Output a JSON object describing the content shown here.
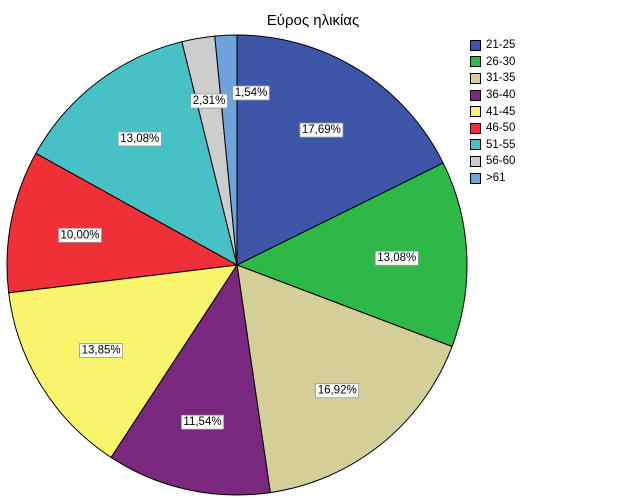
{
  "chart_data": {
    "type": "pie",
    "title": "Εύρος ηλικίας",
    "labels": [
      "21-25",
      "26-30",
      "31-35",
      "36-40",
      "41-45",
      "46-50",
      "51-55",
      "56-60",
      ">61"
    ],
    "values": [
      17.69,
      13.08,
      16.92,
      11.54,
      13.85,
      10.0,
      13.08,
      2.31,
      1.54
    ],
    "data_labels": [
      "17,69%",
      "13,08%",
      "16,92%",
      "11,54%",
      "13,85%",
      "10,00%",
      "13,08%",
      "2,31%",
      "1,54%"
    ],
    "colors": [
      "#3d56a8",
      "#2db848",
      "#d4cf99",
      "#7b2880",
      "#f8f56d",
      "#f03038",
      "#47c1c6",
      "#cdcdcd",
      "#6fa3dc"
    ],
    "legend": "top-right"
  }
}
